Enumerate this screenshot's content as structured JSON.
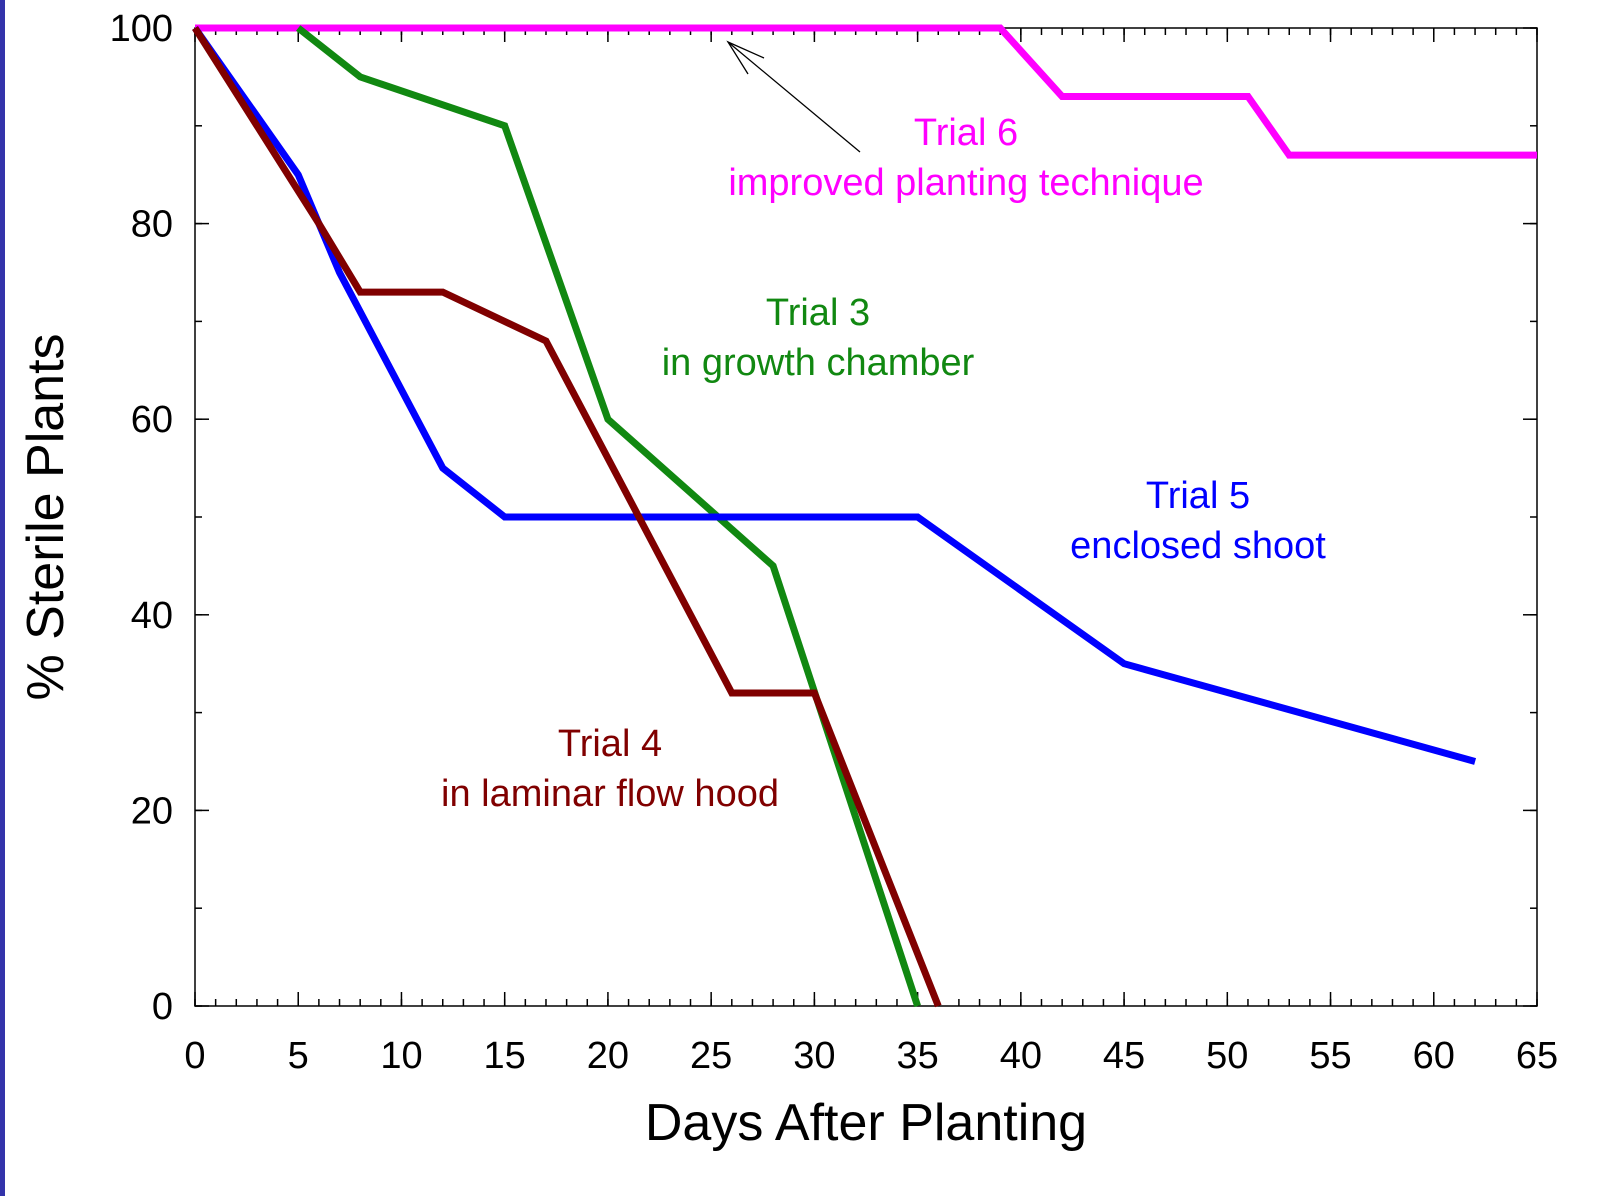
{
  "chart_data": {
    "type": "line",
    "xlabel": "Days After Planting",
    "ylabel": "% Sterile Plants",
    "xlim": [
      0,
      65
    ],
    "ylim": [
      0,
      100
    ],
    "xticks": [
      0,
      5,
      10,
      15,
      20,
      25,
      30,
      35,
      40,
      45,
      50,
      55,
      60,
      65
    ],
    "yticks": [
      0,
      20,
      40,
      60,
      80,
      100
    ],
    "minor_ticks": {
      "x": 1,
      "y": 10
    },
    "grid": false,
    "series": [
      {
        "name": "Trial 6",
        "label": "improved planting technique",
        "color": "#ff00ff",
        "x": [
          0,
          39,
          42,
          51,
          53,
          65
        ],
        "values": [
          100,
          100,
          93,
          93,
          87,
          87
        ]
      },
      {
        "name": "Trial 3",
        "label": "in growth chamber",
        "color": "#118811",
        "x": [
          5,
          8,
          15,
          20,
          28,
          35
        ],
        "values": [
          100,
          95,
          90,
          60,
          45,
          0
        ]
      },
      {
        "name": "Trial 5",
        "label": "enclosed shoot",
        "color": "#0000ff",
        "x": [
          0,
          5,
          7,
          12,
          15,
          35,
          45,
          62
        ],
        "values": [
          100,
          85,
          75,
          55,
          50,
          50,
          35,
          25
        ]
      },
      {
        "name": "Trial 4",
        "label": "in laminar flow hood",
        "color": "#800000",
        "x": [
          0,
          6,
          8,
          12,
          17,
          26,
          30,
          36
        ],
        "values": [
          100,
          80,
          73,
          73,
          68,
          32,
          32,
          0
        ]
      }
    ]
  }
}
